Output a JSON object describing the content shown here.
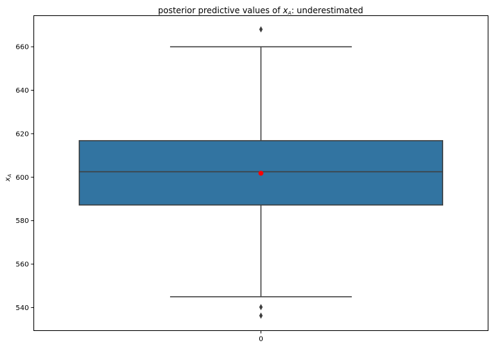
{
  "chart_data": {
    "type": "box",
    "title": "posterior predictive values of ",
    "title_math": "x",
    "title_math_sub": "A",
    "title_suffix": ": underestimated",
    "ylabel": "x",
    "ylabel_sub": "A",
    "xlabel": "",
    "categories": [
      "0"
    ],
    "ylim": [
      529.4,
      674.3
    ],
    "yticks": [
      540,
      560,
      580,
      600,
      620,
      640,
      660
    ],
    "grid": false,
    "boxes": [
      {
        "category": "0",
        "whisker_low": 545,
        "q1": 587.2,
        "median": 602.5,
        "q3": 616.8,
        "whisker_high": 660,
        "mean": 601.8,
        "outliers": [
          668,
          540.2,
          536.3
        ]
      }
    ],
    "colors": {
      "box_fill": "#3274a1",
      "box_edge": "#3f3f3f",
      "mean_marker": "#ff0000",
      "outlier": "#3f3f3f"
    }
  }
}
